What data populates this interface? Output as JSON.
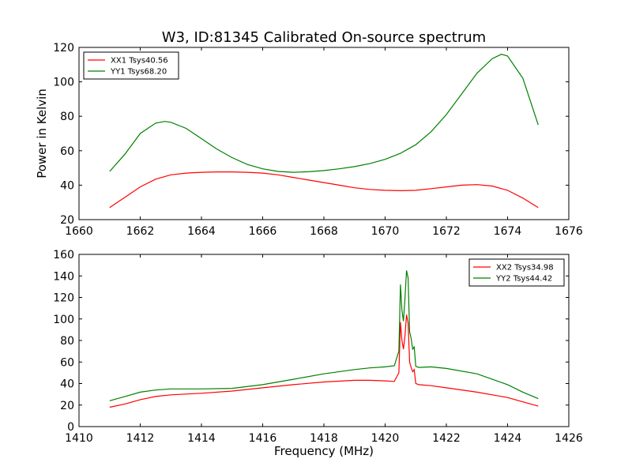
{
  "figure": {
    "title": "W3, ID:81345 Calibrated On-source spectrum",
    "ylabel": "Power in Kelvin",
    "xlabel": "Frequency (MHz)"
  },
  "chart_data": [
    {
      "type": "line",
      "xlim": [
        1660,
        1676
      ],
      "ylim": [
        20,
        120
      ],
      "xticks": [
        1660,
        1662,
        1664,
        1666,
        1668,
        1670,
        1672,
        1674,
        1676
      ],
      "yticks": [
        20,
        40,
        60,
        80,
        100,
        120
      ],
      "legend_position": "top-left",
      "series": [
        {
          "name": "XX1 Tsys40.56",
          "color": "#ff0000",
          "x": [
            1661.0,
            1661.5,
            1662.0,
            1662.5,
            1663.0,
            1663.5,
            1664.0,
            1664.5,
            1665.0,
            1665.5,
            1666.0,
            1666.5,
            1667.0,
            1667.5,
            1668.0,
            1668.5,
            1669.0,
            1669.5,
            1670.0,
            1670.5,
            1671.0,
            1671.5,
            1672.0,
            1672.5,
            1673.0,
            1673.5,
            1674.0,
            1674.5,
            1675.0
          ],
          "y": [
            27,
            33,
            39,
            43.5,
            46,
            47,
            47.5,
            47.7,
            47.7,
            47.5,
            47,
            46,
            44.5,
            43,
            41.5,
            40,
            38.5,
            37.5,
            37,
            36.8,
            37,
            38,
            39,
            40,
            40.3,
            39.5,
            37,
            32.5,
            27
          ]
        },
        {
          "name": "YY1 Tsys68.20",
          "color": "#008000",
          "x": [
            1661.0,
            1661.5,
            1662.0,
            1662.5,
            1662.8,
            1663.0,
            1663.5,
            1664.0,
            1664.5,
            1665.0,
            1665.5,
            1666.0,
            1666.5,
            1667.0,
            1667.5,
            1668.0,
            1668.5,
            1669.0,
            1669.5,
            1670.0,
            1670.5,
            1671.0,
            1671.5,
            1672.0,
            1672.5,
            1673.0,
            1673.5,
            1673.8,
            1674.0,
            1674.5,
            1675.0
          ],
          "y": [
            48,
            58,
            70,
            76,
            77,
            76.5,
            73,
            67,
            61,
            56,
            52,
            49.5,
            48,
            47.5,
            47.8,
            48.5,
            49.5,
            50.8,
            52.5,
            55,
            58.5,
            63.5,
            71,
            81,
            93,
            105,
            113.5,
            116,
            115,
            102,
            75
          ]
        }
      ]
    },
    {
      "type": "line",
      "xlim": [
        1410,
        1426
      ],
      "ylim": [
        0,
        160
      ],
      "xticks": [
        1410,
        1412,
        1414,
        1416,
        1418,
        1420,
        1422,
        1424,
        1426
      ],
      "yticks": [
        0,
        20,
        40,
        60,
        80,
        100,
        120,
        140,
        160
      ],
      "legend_position": "top-right",
      "series": [
        {
          "name": "XX2 Tsys34.98",
          "color": "#ff0000",
          "x": [
            1411.0,
            1411.5,
            1412.0,
            1412.5,
            1413.0,
            1414.0,
            1415.0,
            1416.0,
            1417.0,
            1418.0,
            1419.0,
            1419.5,
            1420.0,
            1420.3,
            1420.45,
            1420.5,
            1420.55,
            1420.6,
            1420.65,
            1420.7,
            1420.75,
            1420.8,
            1420.85,
            1420.9,
            1420.95,
            1421.0,
            1421.1,
            1421.5,
            1422.0,
            1423.0,
            1424.0,
            1424.5,
            1425.0
          ],
          "y": [
            18,
            21,
            25,
            28,
            29.5,
            31,
            33,
            36,
            39,
            41.5,
            43,
            43,
            42.5,
            42,
            50,
            97,
            80,
            72,
            85,
            104,
            96,
            60,
            55,
            51,
            53,
            40,
            39,
            38,
            36,
            32,
            27,
            23,
            19
          ]
        },
        {
          "name": "YY2 Tsys44.42",
          "color": "#008000",
          "x": [
            1411.0,
            1411.5,
            1412.0,
            1412.5,
            1413.0,
            1414.0,
            1415.0,
            1416.0,
            1417.0,
            1418.0,
            1419.0,
            1419.5,
            1420.0,
            1420.3,
            1420.45,
            1420.5,
            1420.55,
            1420.6,
            1420.65,
            1420.7,
            1420.75,
            1420.8,
            1420.85,
            1420.9,
            1420.95,
            1421.0,
            1421.1,
            1421.5,
            1422.0,
            1423.0,
            1424.0,
            1424.5,
            1425.0
          ],
          "y": [
            24,
            28,
            32,
            34,
            35,
            35,
            35.5,
            39,
            44,
            49,
            53,
            54.5,
            55.5,
            56.5,
            70,
            132,
            108,
            98,
            120,
            145,
            138,
            88,
            82,
            72,
            74,
            56,
            55,
            55.5,
            54,
            49,
            39,
            32,
            26
          ]
        }
      ]
    }
  ]
}
